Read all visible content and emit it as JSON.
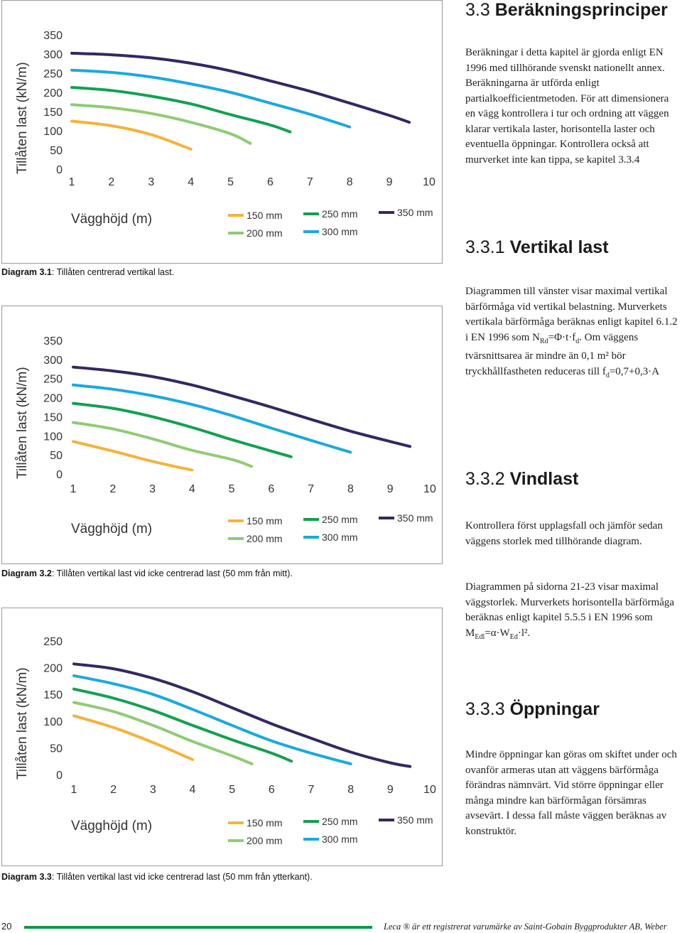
{
  "right_column": {
    "section_title_num": "3.3",
    "section_title": "Beräkningsprinciper",
    "intro": "Beräkningar i detta kapitel är gjorda enligt EN 1996 med tillhörande svenskt nationellt annex. Beräkningarna är utförda enligt partialkoefficientmetoden. För att dimensionera en vägg kontrollera i tur och ordning att väggen klarar vertikala laster, horisontella laster och eventuella öppningar. Kontrollera också att murverket inte kan tippa, se kapitel 3.3.4",
    "s1_num": "3.3.1",
    "s1_title": "Vertikal last",
    "s1_text_a": "Diagrammen till vänster visar maximal vertikal bärförmåga vid vertikal belastning. Murverkets vertikala bärförmåga beräknas enligt kapitel 6.1.2 i EN 1996 som N",
    "s1_sub_rd": "Rd",
    "s1_text_b": "=Φ·t·f",
    "s1_sub_d": "d",
    "s1_text_c": ". Om väggens tvärsnittsarea är mindre än 0,1 m² bör tryckhållfastheten reduceras till f",
    "s1_sub_d2": "d",
    "s1_text_d": "=0,7+0,3·A",
    "s2_num": "3.3.2",
    "s2_title": "Vindlast",
    "s2_p1": "Kontrollera först upplagsfall och jämför sedan väggens storlek med tillhörande diagram.",
    "s2_p2_a": "Diagrammen på sidorna 21-23 visar maximal väggstorlek. Murverkets horisontella bärförmåga beräknas enligt kapitel 5.5.5 i EN 1996 som M",
    "s2_sub_edl": "Edl",
    "s2_p2_b": "=α·W",
    "s2_sub_ed": "Ed",
    "s2_p2_c": "·l².",
    "s3_num": "3.3.3",
    "s3_title": "Öppningar",
    "s3_text": "Mindre öppningar kan göras om skiftet under och ovanför armeras utan att väggens bärförmåga förändras nämnvärt. Vid större öppningar eller många mindre kan bärförmågan försämras avsevärt. I dessa fall måste väggen beräknas av konstruktör."
  },
  "captions": [
    {
      "label": "Diagram 3.1",
      "text": ": Tillåten centrerad vertikal last."
    },
    {
      "label": "Diagram 3.2",
      "text": ": Tillåten vertikal last vid icke centrerad last (50 mm från mitt)."
    },
    {
      "label": "Diagram 3.3",
      "text": ": Tillåten vertikal last vid icke centrerad last (50 mm från ytterkant)."
    }
  ],
  "footer": {
    "page_number": "20",
    "trademark": "Leca ® är ett registrerat varumärke av Saint-Gobain Byggprodukter AB, Weber"
  },
  "chart_data": [
    {
      "type": "line",
      "ylabel": "Tillåten last (kN/m)",
      "xlabel": "Vägghöjd (m)",
      "x_ticks": [
        1,
        2,
        3,
        4,
        5,
        6,
        7,
        8,
        9,
        10
      ],
      "y_ticks": [
        0,
        50,
        100,
        150,
        200,
        250,
        300,
        350
      ],
      "xlim": [
        1,
        10
      ],
      "ylim": [
        0,
        350
      ],
      "grid": false,
      "legend_position": "bottom",
      "series": [
        {
          "name": "150 mm",
          "color": "#f6b23a",
          "x": [
            1,
            2,
            3,
            4
          ],
          "y": [
            125,
            113,
            90,
            52
          ]
        },
        {
          "name": "200 mm",
          "color": "#8fcc74",
          "x": [
            1,
            2,
            3,
            4,
            5,
            5.5
          ],
          "y": [
            168,
            160,
            145,
            122,
            92,
            67
          ]
        },
        {
          "name": "250 mm",
          "color": "#12a150",
          "x": [
            1,
            2,
            3,
            4,
            5,
            6,
            6.5
          ],
          "y": [
            213,
            205,
            190,
            170,
            142,
            115,
            97
          ]
        },
        {
          "name": "300 mm",
          "color": "#1ba9de",
          "x": [
            1,
            2,
            3,
            4,
            5,
            6,
            7,
            8
          ],
          "y": [
            258,
            252,
            240,
            222,
            200,
            172,
            143,
            110
          ]
        },
        {
          "name": "350 mm",
          "color": "#2e2a63",
          "x": [
            1,
            2,
            3,
            4,
            5,
            6,
            7,
            8,
            9,
            9.5
          ],
          "y": [
            302,
            298,
            290,
            276,
            256,
            230,
            203,
            172,
            140,
            122
          ]
        }
      ]
    },
    {
      "type": "line",
      "ylabel": "Tillåten last (kN/m)",
      "xlabel": "Vägghöjd (m)",
      "x_ticks": [
        1,
        2,
        3,
        4,
        5,
        6,
        7,
        8,
        9,
        10
      ],
      "y_ticks": [
        0,
        50,
        100,
        150,
        200,
        250,
        300,
        350
      ],
      "xlim": [
        1,
        10
      ],
      "ylim": [
        0,
        350
      ],
      "grid": false,
      "legend_position": "bottom",
      "series": [
        {
          "name": "150 mm",
          "color": "#f6b23a",
          "x": [
            1,
            2,
            3,
            4
          ],
          "y": [
            85,
            60,
            33,
            10
          ]
        },
        {
          "name": "200 mm",
          "color": "#8fcc74",
          "x": [
            1,
            2,
            3,
            4,
            5,
            5.5
          ],
          "y": [
            135,
            118,
            92,
            62,
            38,
            20
          ]
        },
        {
          "name": "250 mm",
          "color": "#12a150",
          "x": [
            1,
            2,
            3,
            4,
            5,
            6,
            6.5
          ],
          "y": [
            185,
            172,
            150,
            122,
            90,
            60,
            45
          ]
        },
        {
          "name": "300 mm",
          "color": "#1ba9de",
          "x": [
            1,
            2,
            3,
            4,
            5,
            6,
            7,
            8
          ],
          "y": [
            233,
            222,
            205,
            182,
            153,
            120,
            88,
            57
          ]
        },
        {
          "name": "350 mm",
          "color": "#2e2a63",
          "x": [
            1,
            2,
            3,
            4,
            5,
            6,
            7,
            8,
            9,
            9.5
          ],
          "y": [
            280,
            270,
            255,
            233,
            205,
            175,
            143,
            112,
            85,
            72
          ]
        }
      ]
    },
    {
      "type": "line",
      "ylabel": "Tillåten last (kN/m)",
      "xlabel": "Vägghöjd (m)",
      "x_ticks": [
        1,
        2,
        3,
        4,
        5,
        6,
        7,
        8,
        9,
        10
      ],
      "y_ticks": [
        0,
        50,
        100,
        150,
        200,
        250
      ],
      "xlim": [
        1,
        10
      ],
      "ylim": [
        0,
        250
      ],
      "grid": false,
      "legend_position": "bottom",
      "series": [
        {
          "name": "150 mm",
          "color": "#f6b23a",
          "x": [
            1,
            2,
            3,
            4
          ],
          "y": [
            110,
            88,
            60,
            28
          ]
        },
        {
          "name": "200 mm",
          "color": "#8fcc74",
          "x": [
            1,
            2,
            3,
            4,
            5,
            5.5
          ],
          "y": [
            135,
            118,
            92,
            62,
            35,
            20
          ]
        },
        {
          "name": "250 mm",
          "color": "#12a150",
          "x": [
            1,
            2,
            3,
            4,
            5,
            6,
            6.5
          ],
          "y": [
            160,
            143,
            120,
            92,
            65,
            40,
            25
          ]
        },
        {
          "name": "300 mm",
          "color": "#1ba9de",
          "x": [
            1,
            2,
            3,
            4,
            5,
            6,
            7,
            8
          ],
          "y": [
            185,
            170,
            150,
            122,
            92,
            63,
            40,
            20
          ]
        },
        {
          "name": "350 mm",
          "color": "#2e2a63",
          "x": [
            1,
            2,
            3,
            4,
            5,
            6,
            7,
            8,
            9,
            9.5
          ],
          "y": [
            207,
            198,
            180,
            155,
            125,
            95,
            68,
            42,
            22,
            15
          ]
        }
      ]
    }
  ]
}
